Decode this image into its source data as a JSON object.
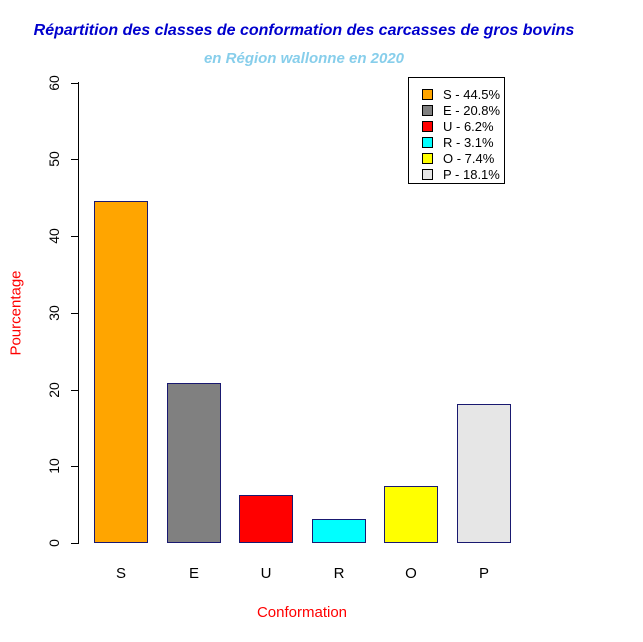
{
  "chart_data": {
    "type": "bar",
    "title": "Répartition des classes de conformation des carcasses de gros bovins",
    "subtitle": "en Région wallonne en 2020",
    "xlabel": "Conformation",
    "ylabel": "Pourcentage",
    "categories": [
      "S",
      "E",
      "U",
      "R",
      "O",
      "P"
    ],
    "values": [
      44.5,
      20.8,
      6.2,
      3.1,
      7.4,
      18.1
    ],
    "bar_colors": [
      "#FFA500",
      "#808080",
      "#FF0000",
      "#00FFFF",
      "#FFFF00",
      "#E6E6E6"
    ],
    "bar_border_color": "#191970",
    "yticks": [
      0,
      10,
      20,
      30,
      40,
      50,
      60
    ],
    "ylim": [
      0,
      60
    ],
    "grid": false,
    "legend": {
      "position": "top-right",
      "items": [
        {
          "label": "S - 44.5%",
          "color": "#FFA500"
        },
        {
          "label": "E - 20.8%",
          "color": "#808080"
        },
        {
          "label": "U - 6.2%",
          "color": "#FF0000"
        },
        {
          "label": "R - 3.1%",
          "color": "#00FFFF"
        },
        {
          "label": "O - 7.4%",
          "color": "#FFFF00"
        },
        {
          "label": "P - 18.1%",
          "color": "#E6E6E6"
        }
      ]
    },
    "colors": {
      "title_color": "#0000CD",
      "subtitle_color": "#87CEEB",
      "axis_label_color": "#FF0000",
      "tick_color": "#000000"
    }
  }
}
